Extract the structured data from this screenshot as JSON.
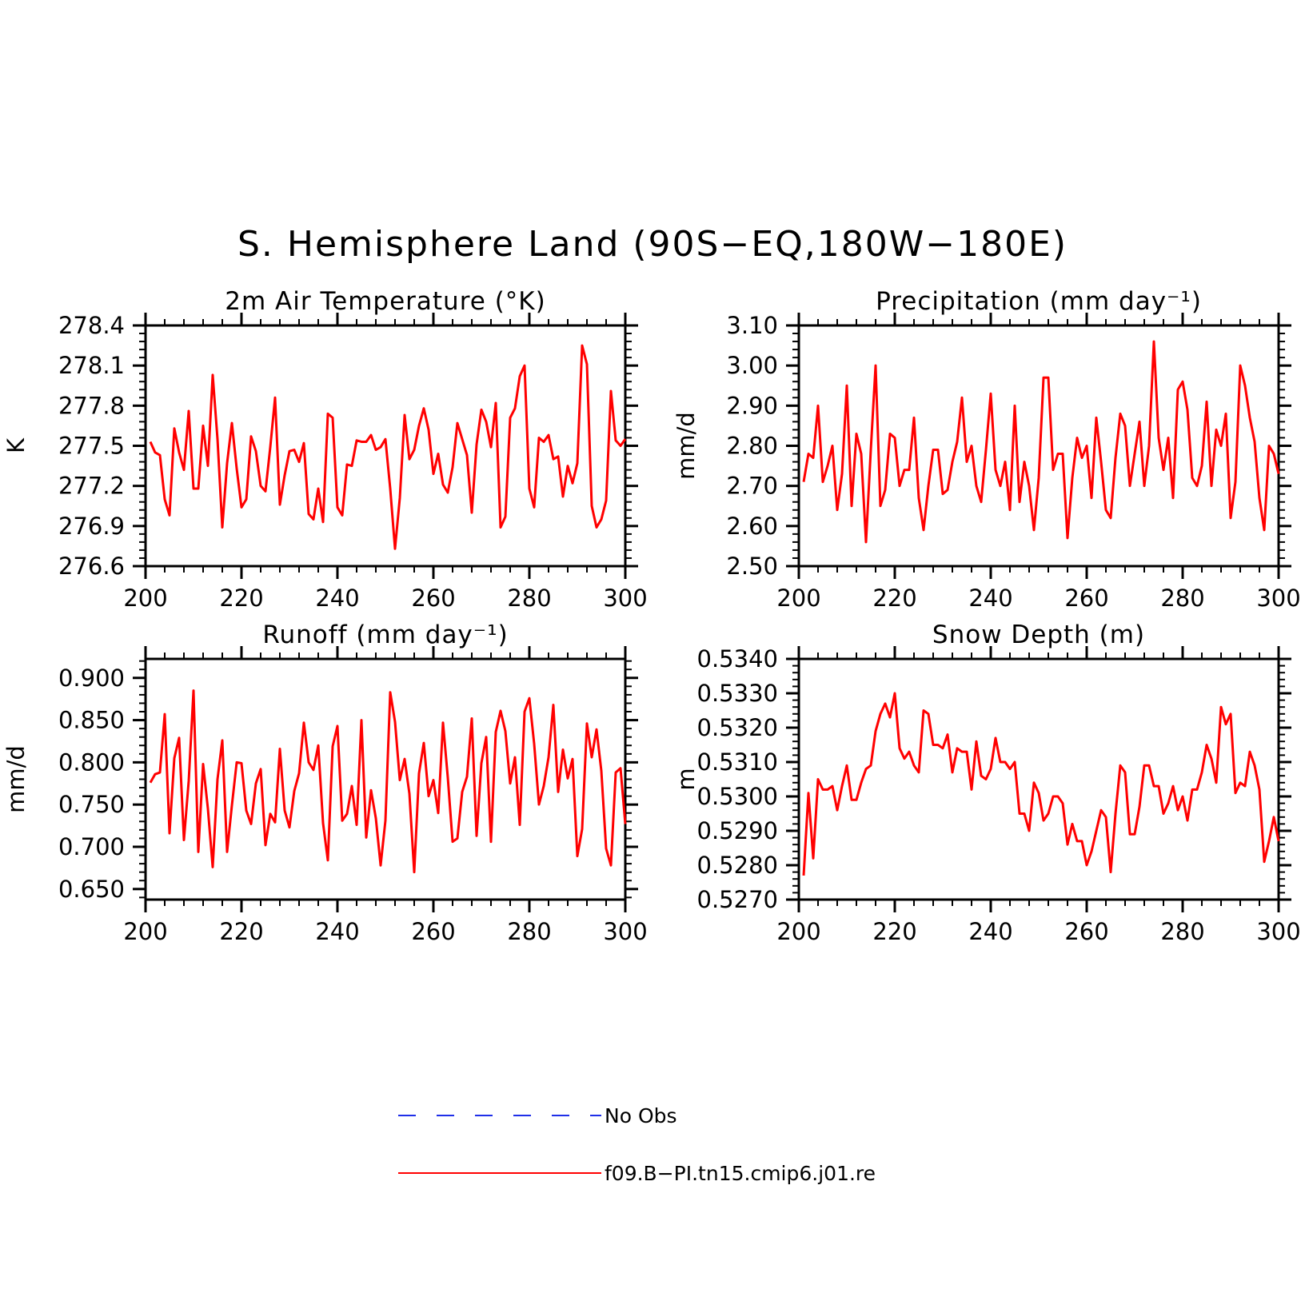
{
  "title": "S. Hemisphere Land (90S−EQ,180W−180E)",
  "legend": {
    "entries": [
      {
        "name": "No Obs",
        "color": "#1f2fe8",
        "dash": true
      },
      {
        "name": "f09.B−PI.tn15.cmip6.j01.re",
        "color": "#ff0000",
        "dash": false
      }
    ]
  },
  "chart_data": [
    {
      "type": "line",
      "title": "2m Air Temperature (°K)",
      "ylabel": "K",
      "xlim": [
        200,
        300
      ],
      "ylim": [
        276.6,
        278.4
      ],
      "xticks": [
        200,
        220,
        240,
        260,
        280,
        300
      ],
      "yticks": [
        276.6,
        276.9,
        277.2,
        277.5,
        277.8,
        278.1,
        278.4
      ],
      "ytick_labels": [
        "276.6",
        "276.9",
        "277.2",
        "277.5",
        "277.8",
        "278.1",
        "278.4"
      ],
      "series": [
        {
          "color": "#ff0000",
          "x_start": 201,
          "values": [
            277.53,
            277.45,
            277.43,
            277.1,
            276.98,
            277.63,
            277.45,
            277.32,
            277.76,
            277.18,
            277.18,
            277.65,
            277.35,
            278.03,
            277.55,
            276.89,
            277.37,
            277.67,
            277.33,
            277.04,
            277.1,
            277.57,
            277.46,
            277.2,
            277.16,
            277.49,
            277.86,
            277.06,
            277.28,
            277.46,
            277.47,
            277.38,
            277.52,
            276.99,
            276.95,
            277.18,
            276.93,
            277.74,
            277.71,
            277.04,
            276.98,
            277.36,
            277.35,
            277.54,
            277.53,
            277.53,
            277.58,
            277.47,
            277.49,
            277.55,
            277.18,
            276.73,
            277.11,
            277.73,
            277.4,
            277.47,
            277.65,
            277.78,
            277.62,
            277.29,
            277.44,
            277.21,
            277.15,
            277.34,
            277.67,
            277.55,
            277.43,
            277.0,
            277.51,
            277.77,
            277.68,
            277.49,
            277.82,
            276.89,
            276.97,
            277.71,
            277.78,
            278.02,
            278.1,
            277.18,
            277.04,
            277.56,
            277.53,
            277.58,
            277.4,
            277.42,
            277.12,
            277.35,
            277.22,
            277.37,
            278.25,
            278.11,
            277.05,
            276.89,
            276.95,
            277.09,
            277.91,
            277.54,
            277.5,
            277.55
          ]
        }
      ]
    },
    {
      "type": "line",
      "title": "Precipitation (mm day⁻¹)",
      "ylabel": "mm/d",
      "xlim": [
        200,
        300
      ],
      "ylim": [
        2.5,
        3.1
      ],
      "xticks": [
        200,
        220,
        240,
        260,
        280,
        300
      ],
      "yticks": [
        2.5,
        2.6,
        2.7,
        2.8,
        2.9,
        3.0,
        3.1
      ],
      "ytick_labels": [
        "2.50",
        "2.60",
        "2.70",
        "2.80",
        "2.90",
        "3.00",
        "3.10"
      ],
      "series": [
        {
          "color": "#ff0000",
          "x_start": 201,
          "values": [
            2.71,
            2.78,
            2.77,
            2.9,
            2.71,
            2.75,
            2.8,
            2.64,
            2.73,
            2.95,
            2.65,
            2.83,
            2.78,
            2.56,
            2.79,
            3.0,
            2.65,
            2.69,
            2.83,
            2.82,
            2.7,
            2.74,
            2.74,
            2.87,
            2.67,
            2.59,
            2.7,
            2.79,
            2.79,
            2.68,
            2.69,
            2.76,
            2.81,
            2.92,
            2.76,
            2.8,
            2.7,
            2.66,
            2.79,
            2.93,
            2.74,
            2.7,
            2.76,
            2.64,
            2.9,
            2.66,
            2.76,
            2.7,
            2.59,
            2.72,
            2.97,
            2.97,
            2.74,
            2.78,
            2.78,
            2.57,
            2.72,
            2.82,
            2.77,
            2.8,
            2.67,
            2.87,
            2.76,
            2.64,
            2.62,
            2.77,
            2.88,
            2.85,
            2.7,
            2.78,
            2.86,
            2.7,
            2.8,
            3.06,
            2.82,
            2.74,
            2.82,
            2.67,
            2.94,
            2.96,
            2.89,
            2.72,
            2.7,
            2.75,
            2.91,
            2.7,
            2.84,
            2.8,
            2.88,
            2.62,
            2.71,
            3.0,
            2.95,
            2.87,
            2.81,
            2.67,
            2.59,
            2.8,
            2.78,
            2.73
          ]
        }
      ]
    },
    {
      "type": "line",
      "title": "Runoff (mm day⁻¹)",
      "ylabel": "mm/d",
      "xlim": [
        200,
        300
      ],
      "ylim": [
        0.6375,
        0.9225
      ],
      "xticks": [
        200,
        220,
        240,
        260,
        280,
        300
      ],
      "yticks": [
        0.65,
        0.7,
        0.75,
        0.8,
        0.85,
        0.9
      ],
      "ytick_labels": [
        "0.650",
        "0.700",
        "0.750",
        "0.800",
        "0.850",
        "0.900"
      ],
      "series": [
        {
          "color": "#ff0000",
          "x_start": 201,
          "values": [
            0.776,
            0.786,
            0.788,
            0.857,
            0.716,
            0.805,
            0.829,
            0.708,
            0.778,
            0.885,
            0.694,
            0.798,
            0.745,
            0.676,
            0.78,
            0.826,
            0.694,
            0.749,
            0.8,
            0.799,
            0.743,
            0.727,
            0.775,
            0.792,
            0.702,
            0.739,
            0.729,
            0.816,
            0.743,
            0.723,
            0.766,
            0.787,
            0.847,
            0.8,
            0.791,
            0.82,
            0.728,
            0.684,
            0.819,
            0.843,
            0.731,
            0.739,
            0.772,
            0.726,
            0.85,
            0.711,
            0.767,
            0.734,
            0.678,
            0.731,
            0.883,
            0.848,
            0.779,
            0.804,
            0.763,
            0.67,
            0.787,
            0.823,
            0.76,
            0.779,
            0.74,
            0.847,
            0.782,
            0.706,
            0.71,
            0.765,
            0.783,
            0.852,
            0.713,
            0.799,
            0.83,
            0.706,
            0.836,
            0.861,
            0.837,
            0.775,
            0.806,
            0.726,
            0.86,
            0.876,
            0.822,
            0.75,
            0.772,
            0.806,
            0.868,
            0.765,
            0.815,
            0.781,
            0.804,
            0.689,
            0.721,
            0.846,
            0.806,
            0.839,
            0.79,
            0.698,
            0.678,
            0.788,
            0.793,
            0.727
          ]
        }
      ]
    },
    {
      "type": "line",
      "title": "Snow Depth (m)",
      "ylabel": "m",
      "xlim": [
        200,
        300
      ],
      "ylim": [
        0.527,
        0.534
      ],
      "xticks": [
        200,
        220,
        240,
        260,
        280,
        300
      ],
      "yticks": [
        0.527,
        0.528,
        0.529,
        0.53,
        0.531,
        0.532,
        0.533,
        0.534
      ],
      "ytick_labels": [
        "0.5270",
        "0.5280",
        "0.5290",
        "0.5300",
        "0.5310",
        "0.5320",
        "0.5330",
        "0.5340"
      ],
      "series": [
        {
          "color": "#ff0000",
          "x_start": 201,
          "values": [
            0.5277,
            0.5301,
            0.5282,
            0.5305,
            0.5302,
            0.5302,
            0.5303,
            0.5296,
            0.5303,
            0.5309,
            0.5299,
            0.5299,
            0.5304,
            0.5308,
            0.5309,
            0.5319,
            0.5324,
            0.5327,
            0.5323,
            0.533,
            0.5314,
            0.5311,
            0.5313,
            0.5309,
            0.5307,
            0.5325,
            0.5324,
            0.5315,
            0.5315,
            0.5314,
            0.5318,
            0.5307,
            0.5314,
            0.5313,
            0.5313,
            0.5302,
            0.5316,
            0.5306,
            0.5305,
            0.5308,
            0.5317,
            0.531,
            0.531,
            0.5308,
            0.531,
            0.5295,
            0.5295,
            0.529,
            0.5304,
            0.5301,
            0.5293,
            0.5295,
            0.53,
            0.53,
            0.5298,
            0.5286,
            0.5292,
            0.5287,
            0.5287,
            0.528,
            0.5284,
            0.529,
            0.5296,
            0.5294,
            0.5278,
            0.5295,
            0.5309,
            0.5307,
            0.5289,
            0.5289,
            0.5297,
            0.5309,
            0.5309,
            0.5303,
            0.5303,
            0.5295,
            0.5298,
            0.5303,
            0.5296,
            0.53,
            0.5293,
            0.5302,
            0.5302,
            0.5307,
            0.5315,
            0.5311,
            0.5304,
            0.5326,
            0.5321,
            0.5324,
            0.5301,
            0.5304,
            0.5303,
            0.5313,
            0.5309,
            0.5302,
            0.5281,
            0.5287,
            0.5294,
            0.5287
          ]
        }
      ]
    }
  ]
}
